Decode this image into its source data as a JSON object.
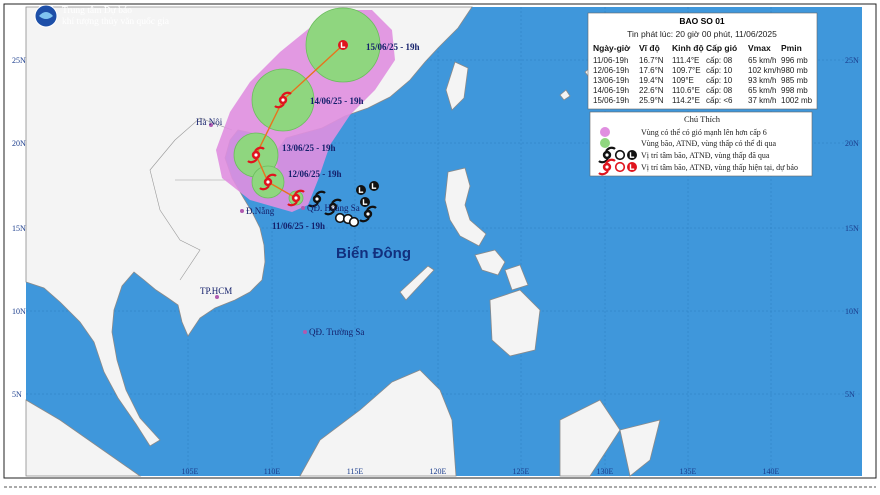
{
  "header": {
    "org_line1": "Trung tâm Dự báo",
    "org_line2": "khí tượng thủy văn quốc gia"
  },
  "info_box": {
    "title": "BAO SO 01",
    "issued": "Tin phát lúc: 20 giờ 00 phút, 11/06/2025",
    "columns": [
      "Ngày-giờ",
      "Vĩ độ",
      "Kinh độ",
      "Cấp gió",
      "Vmax",
      "Pmin"
    ],
    "rows": [
      [
        "11/06-19h",
        "16.7°N",
        "111.4°E",
        "cấp: 08",
        "65 km/h",
        "996 mb"
      ],
      [
        "12/06-19h",
        "17.6°N",
        "109.7°E",
        "cấp: 10",
        "102 km/h",
        "980 mb"
      ],
      [
        "13/06-19h",
        "19.4°N",
        "109°E",
        "cấp: 10",
        "93 km/h",
        "985 mb"
      ],
      [
        "14/06-19h",
        "22.6°N",
        "110.6°E",
        "cấp: 08",
        "65 km/h",
        "998 mb"
      ],
      [
        "15/06-19h",
        "25.9°N",
        "114.2°E",
        "cấp: <6",
        "37 km/h",
        "1002 mb"
      ]
    ]
  },
  "legend": {
    "title": "Chú Thích",
    "items": [
      "Vùng có thể có gió mạnh lên hơn cấp 6",
      "Vùng bão, ATNĐ, vùng thấp có thể đi qua",
      "Vị trí tâm bão, ATNĐ, vùng thấp đã qua",
      "Vị trí tâm bão, ATNĐ, vùng thấp hiện tại, dự báo"
    ]
  },
  "map": {
    "sea": "Biển Đông",
    "places": [
      "Hà Nội",
      "Đ.Nẵng",
      "TP.HCM",
      "QĐ. Hoàng Sa",
      "QĐ. Trường Sa"
    ],
    "track_labels": [
      "11/06/25 - 19h",
      "12/06/25 - 19h",
      "13/06/25 - 19h",
      "14/06/25 - 19h",
      "15/06/25 - 19h"
    ],
    "lat_labels": [
      "25N",
      "20N",
      "15N",
      "10N",
      "5N"
    ],
    "lon_labels": [
      "105E",
      "110E",
      "115E",
      "120E",
      "125E",
      "130E",
      "135E",
      "140E"
    ]
  }
}
